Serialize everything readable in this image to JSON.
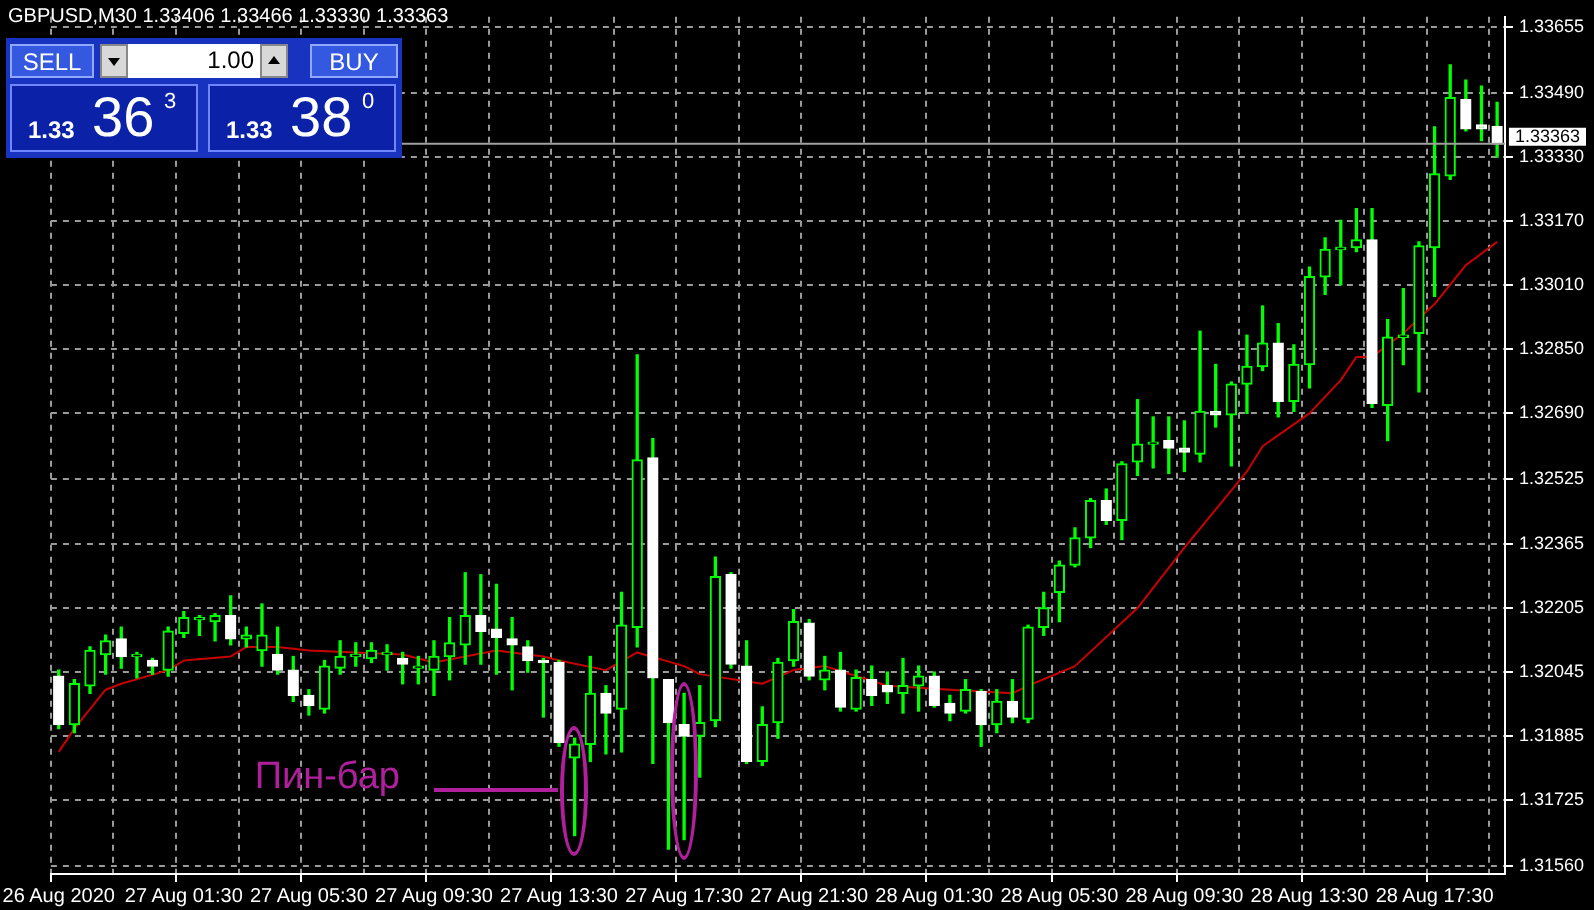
{
  "chart_data": {
    "type": "candlestick",
    "title": "GBPUSD,M30 1.33406 1.33466 1.33330 1.33363",
    "categories": [
      "26 Aug 2020",
      null,
      null,
      null,
      null,
      null,
      null,
      null,
      "27 Aug 01:30",
      null,
      null,
      null,
      null,
      null,
      null,
      null,
      "27 Aug 05:30",
      null,
      null,
      null,
      null,
      null,
      null,
      null,
      "27 Aug 09:30",
      null,
      null,
      null,
      null,
      null,
      null,
      null,
      "27 Aug 13:30",
      null,
      null,
      null,
      null,
      null,
      null,
      null,
      "27 Aug 17:30",
      null,
      null,
      null,
      null,
      null,
      null,
      null,
      "27 Aug 21:30",
      null,
      null,
      null,
      null,
      null,
      null,
      null,
      "28 Aug 01:30",
      null,
      null,
      null,
      null,
      null,
      null,
      null,
      "28 Aug 05:30",
      null,
      null,
      null,
      null,
      null,
      null,
      null,
      "28 Aug 09:30",
      null,
      null,
      null,
      null,
      null,
      null,
      null,
      "28 Aug 13:30",
      null,
      null,
      null,
      null,
      null,
      null,
      null,
      "28 Aug 17:30",
      null,
      null,
      null,
      null
    ],
    "ohlc": [
      [
        1.32034,
        1.32049,
        1.31903,
        1.31913
      ],
      [
        1.31913,
        1.32025,
        1.31893,
        1.32015
      ],
      [
        1.3201,
        1.32107,
        1.31991,
        1.32098
      ],
      [
        1.32088,
        1.32136,
        1.32039,
        1.32122
      ],
      [
        1.32127,
        1.32156,
        1.32054,
        1.32083
      ],
      [
        1.32083,
        1.32093,
        1.3203,
        1.32088
      ],
      [
        1.32073,
        1.32078,
        1.32039,
        1.32059
      ],
      [
        1.32049,
        1.32156,
        1.32034,
        1.32146
      ],
      [
        1.32141,
        1.32195,
        1.32131,
        1.3218
      ],
      [
        1.32175,
        1.32185,
        1.32136,
        1.3218
      ],
      [
        1.3217,
        1.3219,
        1.32122,
        1.32185
      ],
      [
        1.32185,
        1.32234,
        1.32112,
        1.32127
      ],
      [
        1.32127,
        1.32156,
        1.32107,
        1.32136
      ],
      [
        1.32098,
        1.32214,
        1.32059,
        1.32136
      ],
      [
        1.32088,
        1.32156,
        1.32039,
        1.32049
      ],
      [
        1.32049,
        1.32083,
        1.31971,
        1.31986
      ],
      [
        1.31986,
        1.32,
        1.31937,
        1.31961
      ],
      [
        1.31952,
        1.32073,
        1.31942,
        1.32059
      ],
      [
        1.32054,
        1.32122,
        1.32039,
        1.32083
      ],
      [
        1.32083,
        1.32117,
        1.32059,
        1.32088
      ],
      [
        1.32078,
        1.32117,
        1.32068,
        1.32098
      ],
      [
        1.32088,
        1.32112,
        1.32049,
        1.32093
      ],
      [
        1.32078,
        1.32093,
        1.32015,
        1.32064
      ],
      [
        1.32054,
        1.32083,
        1.32015,
        1.32059
      ],
      [
        1.32049,
        1.32122,
        1.31986,
        1.32083
      ],
      [
        1.32083,
        1.3218,
        1.32025,
        1.32117
      ],
      [
        1.32112,
        1.32292,
        1.32064,
        1.32185
      ],
      [
        1.32185,
        1.32287,
        1.32064,
        1.32146
      ],
      [
        1.32151,
        1.32263,
        1.32039,
        1.32131
      ],
      [
        1.32127,
        1.3218,
        1.32,
        1.32112
      ],
      [
        1.32107,
        1.32122,
        1.32044,
        1.32073
      ],
      [
        1.32073,
        1.32078,
        1.31932,
        1.32068
      ],
      [
        1.32068,
        1.32073,
        1.31859,
        1.31869
      ],
      [
        1.3183,
        1.31879,
        1.31636,
        1.31864
      ],
      [
        1.31864,
        1.32083,
        1.31821,
        1.31991
      ],
      [
        1.31991,
        1.3201,
        1.3184,
        1.31942
      ],
      [
        1.31952,
        1.32243,
        1.31845,
        1.32161
      ],
      [
        1.32156,
        1.32836,
        1.32107,
        1.32574
      ],
      [
        1.32579,
        1.32627,
        1.31816,
        1.3203
      ],
      [
        1.32025,
        1.32025,
        1.31602,
        1.31918
      ],
      [
        1.31913,
        1.31991,
        1.31626,
        1.31884
      ],
      [
        1.31884,
        1.3201,
        1.31782,
        1.31918
      ],
      [
        1.31923,
        1.32331,
        1.31908,
        1.32282
      ],
      [
        1.32287,
        1.32292,
        1.32054,
        1.32064
      ],
      [
        1.32059,
        1.32122,
        1.31816,
        1.31821
      ],
      [
        1.31821,
        1.31957,
        1.31811,
        1.31913
      ],
      [
        1.31918,
        1.32078,
        1.31879,
        1.32068
      ],
      [
        1.32073,
        1.322,
        1.32059,
        1.3217
      ],
      [
        1.32166,
        1.32175,
        1.32025,
        1.32034
      ],
      [
        1.32025,
        1.32083,
        1.32,
        1.32049
      ],
      [
        1.32049,
        1.32093,
        1.31947,
        1.31957
      ],
      [
        1.31952,
        1.32049,
        1.31947,
        1.3203
      ],
      [
        1.32025,
        1.32059,
        1.31961,
        1.31986
      ],
      [
        1.3201,
        1.32044,
        1.31966,
        1.31995
      ],
      [
        1.31991,
        1.32078,
        1.31942,
        1.3201
      ],
      [
        1.3201,
        1.32059,
        1.31947,
        1.32034
      ],
      [
        1.32034,
        1.32044,
        1.31957,
        1.31961
      ],
      [
        1.31966,
        1.31986,
        1.31923,
        1.31942
      ],
      [
        1.31947,
        1.32025,
        1.31942,
        1.32
      ],
      [
        1.31995,
        1.32,
        1.31859,
        1.31913
      ],
      [
        1.31913,
        1.32,
        1.31893,
        1.31971
      ],
      [
        1.31971,
        1.32025,
        1.31918,
        1.31932
      ],
      [
        1.31927,
        1.32161,
        1.31918,
        1.32156
      ],
      [
        1.32156,
        1.32243,
        1.32136,
        1.32204
      ],
      [
        1.32243,
        1.32321,
        1.3217,
        1.32311
      ],
      [
        1.32311,
        1.32404,
        1.32307,
        1.32379
      ],
      [
        1.32379,
        1.32477,
        1.32355,
        1.32472
      ],
      [
        1.32472,
        1.32501,
        1.32413,
        1.32423
      ],
      [
        1.32423,
        1.32569,
        1.32375,
        1.32564
      ],
      [
        1.32569,
        1.32724,
        1.32535,
        1.32613
      ],
      [
        1.32613,
        1.32681,
        1.32554,
        1.32618
      ],
      [
        1.32622,
        1.32681,
        1.3254,
        1.32603
      ],
      [
        1.32603,
        1.32671,
        1.32545,
        1.32593
      ],
      [
        1.32588,
        1.32895,
        1.32569,
        1.32695
      ],
      [
        1.32695,
        1.32812,
        1.32656,
        1.32686
      ],
      [
        1.32686,
        1.32768,
        1.32559,
        1.32763
      ],
      [
        1.32763,
        1.32885,
        1.3269,
        1.32807
      ],
      [
        1.32807,
        1.32958,
        1.32797,
        1.32865
      ],
      [
        1.32865,
        1.32914,
        1.32681,
        1.3272
      ],
      [
        1.3272,
        1.32861,
        1.32695,
        1.32812
      ],
      [
        1.32812,
        1.33055,
        1.32754,
        1.33031
      ],
      [
        1.33031,
        1.33128,
        1.32987,
        1.33099
      ],
      [
        1.33099,
        1.33172,
        1.33011,
        1.33104
      ],
      [
        1.33104,
        1.33201,
        1.33094,
        1.33123
      ],
      [
        1.33123,
        1.33201,
        1.32705,
        1.32715
      ],
      [
        1.3271,
        1.32924,
        1.32622,
        1.3288
      ],
      [
        1.3288,
        1.33001,
        1.32812,
        1.32885
      ],
      [
        1.3289,
        1.33118,
        1.32744,
        1.33108
      ],
      [
        1.33104,
        1.33405,
        1.32982,
        1.33288
      ],
      [
        1.33283,
        1.3356,
        1.33274,
        1.33478
      ],
      [
        1.33473,
        1.33522,
        1.33395,
        1.334
      ],
      [
        1.3341,
        1.33507,
        1.33371,
        1.334
      ],
      [
        1.33406,
        1.33466,
        1.3333,
        1.33363
      ]
    ],
    "color": "#00ff00",
    "colors": [
      "#ffffff",
      "#00ff00",
      "#00ff00",
      "#00ff00",
      "#ffffff",
      "#00ff00",
      "#ffffff",
      "#00ff00",
      "#00ff00",
      "#00ff00",
      "#00ff00",
      "#ffffff",
      "#00ff00",
      "#00ff00",
      "#ffffff",
      "#ffffff",
      "#ffffff",
      "#00ff00",
      "#00ff00",
      "#00ff00",
      "#00ff00",
      "#00ff00",
      "#ffffff",
      "#00ff00",
      "#00ff00",
      "#00ff00",
      "#00ff00",
      "#ffffff",
      "#ffffff",
      "#ffffff",
      "#ffffff",
      "#ffffff",
      "#ffffff",
      "#00ff00",
      "#00ff00",
      "#ffffff",
      "#00ff00",
      "#00ff00",
      "#ffffff",
      "#ffffff",
      "#ffffff",
      "#00ff00",
      "#00ff00",
      "#ffffff",
      "#ffffff",
      "#00ff00",
      "#00ff00",
      "#00ff00",
      "#ffffff",
      "#00ff00",
      "#ffffff",
      "#00ff00",
      "#ffffff",
      "#ffffff",
      "#00ff00",
      "#00ff00",
      "#ffffff",
      "#ffffff",
      "#00ff00",
      "#ffffff",
      "#00ff00",
      "#ffffff",
      "#00ff00",
      "#00ff00",
      "#00ff00",
      "#00ff00",
      "#00ff00",
      "#ffffff",
      "#00ff00",
      "#00ff00",
      "#00ff00",
      "#ffffff",
      "#ffffff",
      "#00ff00",
      "#ffffff",
      "#00ff00",
      "#00ff00",
      "#00ff00",
      "#ffffff",
      "#00ff00",
      "#00ff00",
      "#00ff00",
      "#00ff00",
      "#00ff00",
      "#ffffff",
      "#00ff00",
      "#00ff00",
      "#00ff00",
      "#00ff00",
      "#00ff00",
      "#ffffff",
      "#ffffff",
      "#ffffff"
    ],
    "series": [
      {
        "type": "line",
        "color": "#c80000",
        "values": [
          1.31845,
          1.31903,
          null,
          1.32,
          1.32015,
          null,
          null,
          1.32049,
          1.32073,
          null,
          null,
          1.32083,
          1.32107,
          null,
          1.32107,
          null,
          1.32098,
          null,
          null,
          null,
          null,
          null,
          1.32088,
          null,
          1.32068,
          null,
          null,
          null,
          1.32098,
          null,
          null,
          1.32083,
          1.32073,
          null,
          null,
          1.32049,
          null,
          1.32093,
          null,
          null,
          1.32059,
          1.32039,
          null,
          null,
          null,
          1.32015,
          null,
          1.32049,
          null,
          1.32059,
          null,
          null,
          null,
          1.3201,
          null,
          null,
          null,
          1.32,
          null,
          null,
          null,
          1.31991,
          1.3201,
          null,
          null,
          1.32059,
          null,
          null,
          null,
          1.32204,
          null,
          null,
          1.32355,
          null,
          null,
          null,
          1.32545,
          1.32608,
          null,
          null,
          1.3269,
          null,
          1.32773,
          1.32831,
          1.32831,
          null,
          1.3289,
          null,
          1.32963,
          null,
          1.3306,
          null,
          1.33118
        ]
      }
    ],
    "ylim": [
      1.3154,
      1.3368
    ],
    "yticks": [
      {
        "value": 1.3156,
        "label": "1.31560"
      },
      1.31725,
      1.31885,
      1.32045,
      1.32205,
      1.32365,
      1.32525,
      {
        "value": 1.3269,
        "label": "1.32690"
      },
      {
        "value": 1.3285,
        "label": "1.32850"
      },
      {
        "value": 1.3301,
        "label": "1.33010"
      },
      {
        "value": 1.3317,
        "label": "1.33170"
      },
      {
        "value": 1.3333,
        "label": "1.33330"
      },
      {
        "value": 1.3349,
        "label": "1.33490"
      },
      1.33655
    ],
    "grid": true,
    "ref_lines": [
      {
        "axis": "y",
        "value": 1.33363,
        "label": "1.33363",
        "color": "#a0a0a0"
      }
    ],
    "annotations": [
      "Пин-бар",
      "SELL",
      "1.00",
      "BUY",
      "1.33",
      "36",
      "3",
      "1.33",
      "38",
      "0"
    ]
  }
}
